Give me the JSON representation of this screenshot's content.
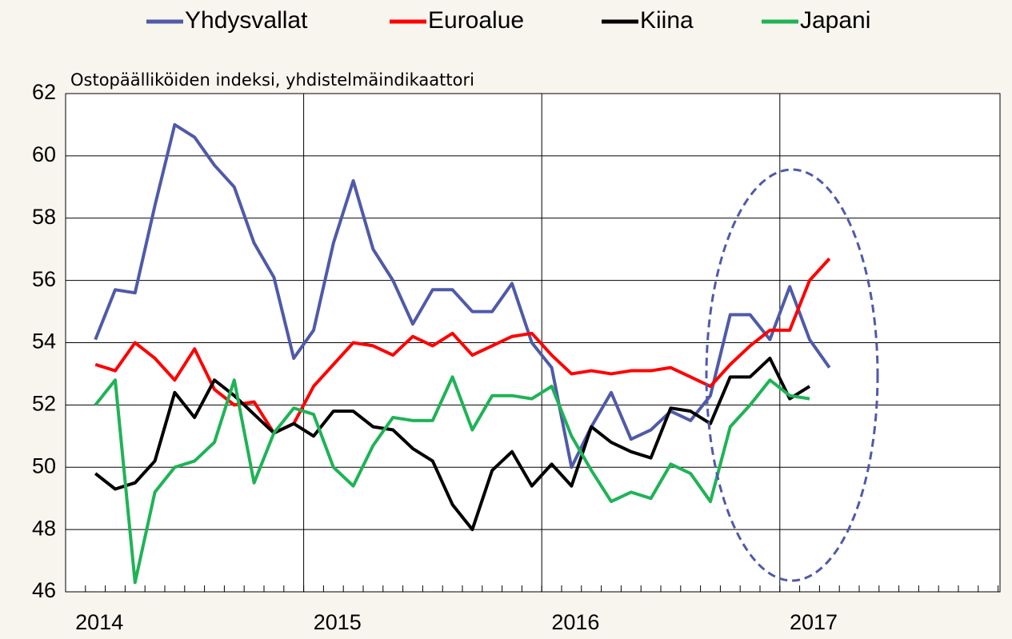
{
  "chart_data": {
    "type": "line",
    "subtitle": "Ostopäälliköiden indeksi, yhdistelmäindikaattori",
    "categories": [
      "2014",
      null,
      null,
      null,
      null,
      null,
      null,
      null,
      null,
      null,
      null,
      null,
      "2015",
      null,
      null,
      null,
      null,
      null,
      null,
      null,
      null,
      null,
      null,
      null,
      "2016",
      null,
      null,
      null,
      null,
      null,
      null,
      null,
      null,
      null,
      null,
      null,
      "2017",
      null,
      null,
      null,
      null,
      null,
      null,
      null,
      null,
      null,
      null,
      null
    ],
    "series": [
      {
        "name": "Yhdysvallat",
        "color": "#4f5aa8",
        "values": [
          54.1,
          55.7,
          55.6,
          58.4,
          61.0,
          60.6,
          59.7,
          59.0,
          57.2,
          56.1,
          53.5,
          54.4,
          57.2,
          59.2,
          57.0,
          56.0,
          54.6,
          55.7,
          55.7,
          55.0,
          55.0,
          55.9,
          54.0,
          53.2,
          50.0,
          51.3,
          52.4,
          50.9,
          51.2,
          51.8,
          51.5,
          52.3,
          54.9,
          54.9,
          54.1,
          55.8,
          54.1,
          53.2,
          null,
          null,
          null,
          null,
          null,
          null,
          null,
          null,
          null,
          null
        ]
      },
      {
        "name": "Euroalue",
        "color": "#ff0000",
        "values": [
          53.3,
          53.1,
          54.0,
          53.5,
          52.8,
          53.8,
          52.5,
          52.0,
          52.1,
          51.1,
          51.4,
          52.6,
          53.3,
          54.0,
          53.9,
          53.6,
          54.2,
          53.9,
          54.3,
          53.6,
          53.9,
          54.2,
          54.3,
          53.6,
          53.0,
          53.1,
          53.0,
          53.1,
          53.1,
          53.2,
          52.9,
          52.6,
          53.3,
          53.9,
          54.4,
          54.4,
          56.0,
          56.7,
          null,
          null,
          null,
          null,
          null,
          null,
          null,
          null,
          null,
          null
        ]
      },
      {
        "name": "Kiina",
        "color": "#000000",
        "values": [
          49.8,
          49.3,
          49.5,
          50.2,
          52.4,
          51.6,
          52.8,
          52.3,
          51.7,
          51.1,
          51.4,
          51.0,
          51.8,
          51.8,
          51.3,
          51.2,
          50.6,
          50.2,
          48.8,
          48.0,
          49.9,
          50.5,
          49.4,
          50.1,
          49.4,
          51.3,
          50.8,
          50.5,
          50.3,
          51.9,
          51.8,
          51.4,
          52.9,
          52.9,
          53.5,
          52.2,
          52.6,
          null,
          null,
          null,
          null,
          null,
          null,
          null,
          null,
          null,
          null,
          null
        ]
      },
      {
        "name": "Japani",
        "color": "#1fb356",
        "values": [
          52.0,
          52.8,
          46.3,
          49.2,
          50.0,
          50.2,
          50.8,
          52.8,
          49.5,
          51.1,
          51.9,
          51.7,
          50.0,
          49.4,
          50.7,
          51.6,
          51.5,
          51.5,
          52.9,
          51.2,
          52.3,
          52.3,
          52.2,
          52.6,
          51.0,
          49.9,
          48.9,
          49.2,
          49.0,
          50.1,
          49.8,
          48.9,
          51.3,
          52.0,
          52.8,
          52.3,
          52.2,
          null,
          null,
          null,
          null,
          null,
          null,
          null,
          null,
          null,
          null,
          null
        ]
      }
    ],
    "ylim": [
      46,
      62
    ],
    "yticks": [
      46,
      48,
      50,
      52,
      54,
      56,
      58,
      60,
      62
    ],
    "grid": true
  }
}
